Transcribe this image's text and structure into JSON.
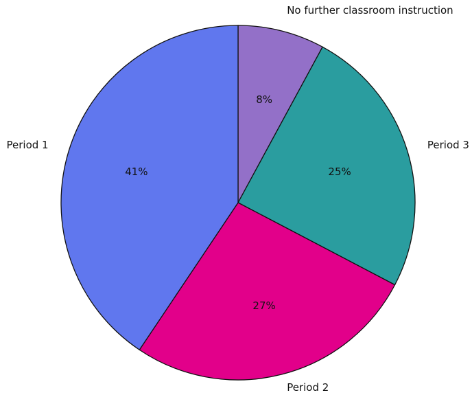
{
  "chart_data": {
    "type": "pie",
    "title": "",
    "start_angle_deg": 90,
    "direction": "clockwise",
    "legend": "none",
    "slices": [
      {
        "label": "No further classroom instruction",
        "value": 8,
        "pct_text": "8%",
        "color": "#9370c8"
      },
      {
        "label": "Period 3",
        "value": 25,
        "pct_text": "25%",
        "color": "#2a9d9f"
      },
      {
        "label": "Period 2",
        "value": 27,
        "pct_text": "27%",
        "color": "#e2008a"
      },
      {
        "label": "Period 1",
        "value": 41,
        "pct_text": "41%",
        "color": "#6077ee"
      }
    ]
  }
}
